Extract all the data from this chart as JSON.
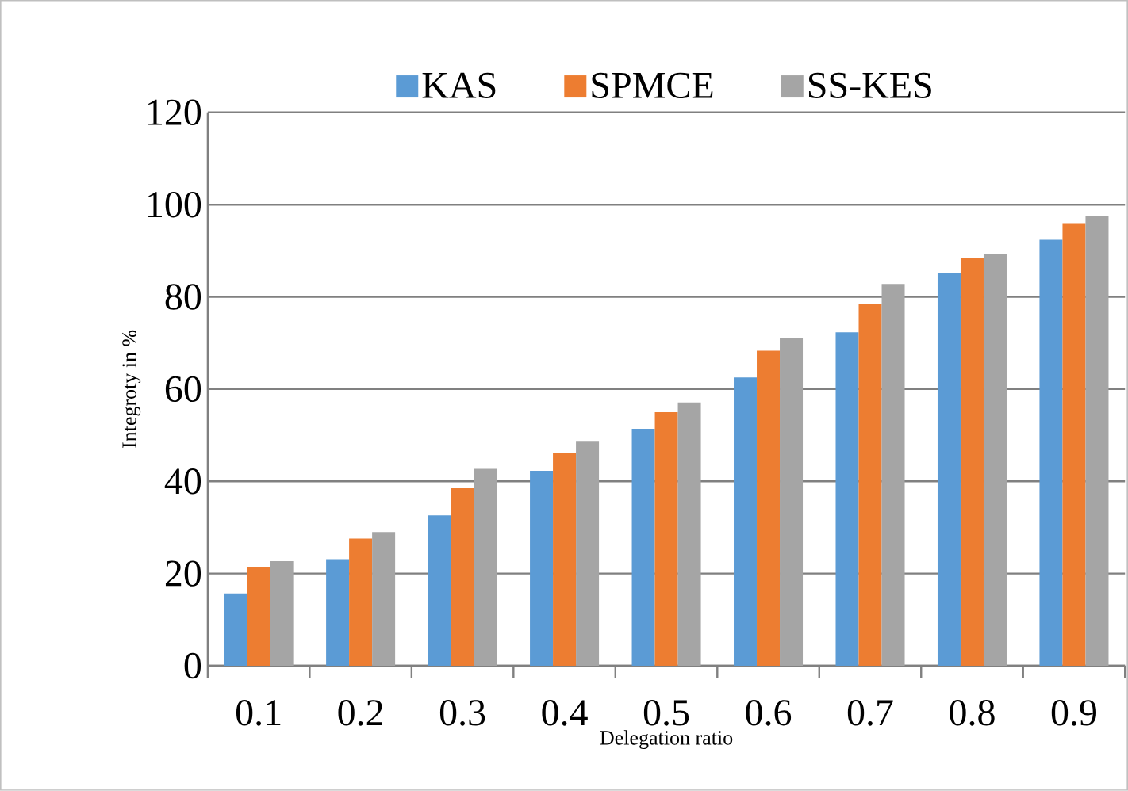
{
  "chart_data": {
    "type": "bar",
    "xlabel": "Delegation ratio",
    "ylabel": "Integroty in %",
    "categories": [
      "0.1",
      "0.2",
      "0.3",
      "0.4",
      "0.5",
      "0.6",
      "0.7",
      "0.8",
      "0.9"
    ],
    "series": [
      {
        "name": "KAS",
        "color": "#5b9bd5",
        "values": [
          15.7,
          23.1,
          32.6,
          42.3,
          51.4,
          62.5,
          72.3,
          85.2,
          92.4
        ]
      },
      {
        "name": "SPMCE",
        "color": "#ed7d31",
        "values": [
          21.5,
          27.6,
          38.5,
          46.2,
          55.0,
          68.3,
          78.4,
          88.4,
          96.0
        ]
      },
      {
        "name": "SS-KES",
        "color": "#a5a5a5",
        "values": [
          22.7,
          29.0,
          42.7,
          48.6,
          57.1,
          71.0,
          82.8,
          89.3,
          97.5
        ]
      }
    ],
    "ylim": [
      0,
      120
    ],
    "yticks": [
      0,
      20,
      40,
      60,
      80,
      100,
      120
    ],
    "grid": "y",
    "legend": "top"
  }
}
